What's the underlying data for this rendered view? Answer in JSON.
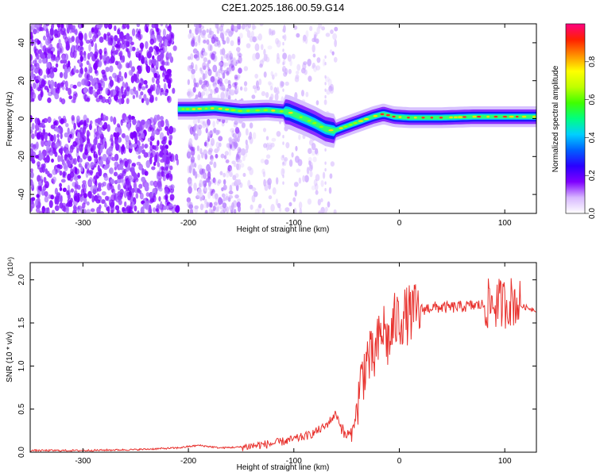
{
  "figure": {
    "title": "C2E1.2025.186.00.59.G14"
  },
  "chart_data": [
    {
      "type": "heatmap",
      "xlabel": "Height of straight line (km)",
      "ylabel": "Frequency (Hz)",
      "xlim": [
        -350,
        130
      ],
      "ylim": [
        -50,
        50
      ],
      "xticks": [
        -300,
        -200,
        -100,
        0,
        100
      ],
      "yticks": [
        -40,
        -20,
        0,
        20,
        40
      ],
      "colorbar": {
        "label": "Normalized spectral amplitude",
        "range": [
          0,
          1
        ],
        "ticks": [
          "0.0",
          "0.2",
          "0.4",
          "0.6",
          "0.8"
        ],
        "colormap": [
          "#ffffff",
          "#d8b8ff",
          "#7f00ff",
          "#2a00ff",
          "#0060ff",
          "#00d0ff",
          "#00ff80",
          "#40ff00",
          "#c0ff00",
          "#ffff00",
          "#ff9000",
          "#ff2000",
          "#ff0080"
        ]
      },
      "ridge": {
        "x": [
          -210,
          -195,
          -175,
          -150,
          -125,
          -105,
          -90,
          -80,
          -70,
          -62,
          -55,
          -45,
          -35,
          -25,
          -15,
          -5,
          10,
          40,
          70,
          100,
          130
        ],
        "y": [
          5,
          5,
          5.5,
          4,
          4.5,
          3.5,
          0,
          -2.5,
          -5.5,
          -6.5,
          -5,
          -3,
          -1,
          1,
          2.5,
          1,
          0.5,
          0.5,
          1,
          1,
          1
        ]
      },
      "grid": false
    },
    {
      "type": "line",
      "xlabel": "Height of straight line (km)",
      "ylabel": "SNR (10 * v/v)",
      "y_multiplier": "(x10⁴)",
      "xlim": [
        -350,
        130
      ],
      "ylim": [
        0,
        2.2
      ],
      "xticks": [
        -300,
        -200,
        -100,
        0,
        100
      ],
      "yticks": [
        "0.0",
        "0.5",
        "1.0",
        "1.5",
        "2.0"
      ],
      "series": [
        {
          "color": "#e8322e",
          "x": [
            -350,
            -300,
            -250,
            -210,
            -190,
            -170,
            -150,
            -120,
            -100,
            -85,
            -70,
            -60,
            -52,
            -45,
            -40,
            -35,
            -30,
            -25,
            -20,
            -15,
            -10,
            -5,
            0,
            10,
            20,
            30,
            50,
            70,
            90,
            100,
            105,
            110,
            115,
            120,
            130
          ],
          "y": [
            0.02,
            0.02,
            0.03,
            0.05,
            0.08,
            0.05,
            0.06,
            0.1,
            0.15,
            0.2,
            0.3,
            0.45,
            0.2,
            0.2,
            0.55,
            0.9,
            1.1,
            1.05,
            1.25,
            1.45,
            1.25,
            1.5,
            1.55,
            1.6,
            1.65,
            1.68,
            1.68,
            1.7,
            1.72,
            1.73,
            1.75,
            1.75,
            1.7,
            1.68,
            1.65
          ]
        }
      ],
      "grid": false
    }
  ]
}
